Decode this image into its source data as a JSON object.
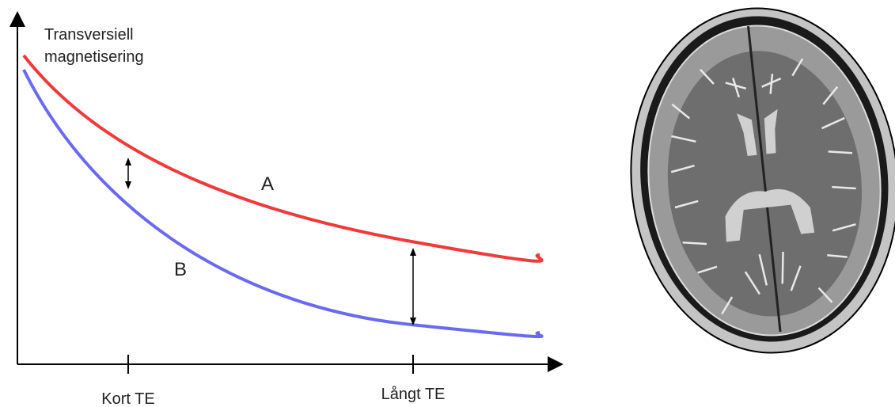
{
  "axis_label": [
    "Transversiell",
    "magnetisering"
  ],
  "curve_labels": {
    "a": "A",
    "b": "B"
  },
  "x_labels": [
    "Kort TE",
    "Långt TE"
  ]
}
